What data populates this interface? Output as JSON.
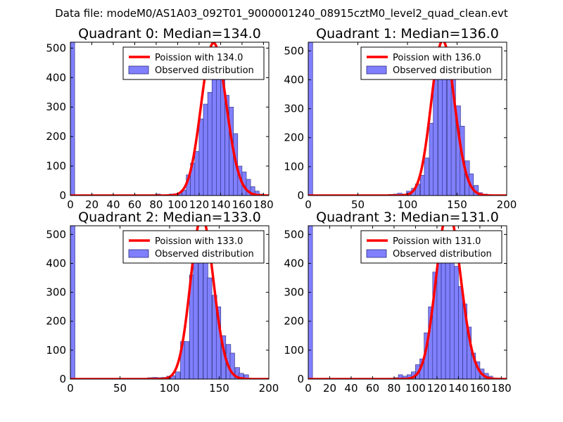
{
  "suptitle": "Data file: modeM0/AS1A03_092T01_9000001240_08915cztM0_level2_quad_clean.evt",
  "colors": {
    "bar_fill": "#8080ff",
    "bar_edge": "#2a2a7a",
    "line": "#ff0000",
    "axis": "#000000"
  },
  "chart_data": [
    {
      "type": "bar",
      "title": "Quadrant 0: Median=134.0",
      "xlim": [
        0,
        185
      ],
      "ylim": [
        0,
        520
      ],
      "xticks": [
        0,
        20,
        40,
        60,
        80,
        100,
        120,
        140,
        160,
        180
      ],
      "yticks": [
        0,
        100,
        200,
        300,
        400,
        500
      ],
      "bin_width": 4,
      "bins": [
        [
          0,
          520
        ],
        [
          76,
          3
        ],
        [
          80,
          5
        ],
        [
          84,
          2
        ],
        [
          88,
          3
        ],
        [
          92,
          5
        ],
        [
          96,
          6
        ],
        [
          100,
          10
        ],
        [
          104,
          18
        ],
        [
          108,
          70
        ],
        [
          112,
          110
        ],
        [
          116,
          150
        ],
        [
          120,
          260
        ],
        [
          124,
          310
        ],
        [
          128,
          350
        ],
        [
          132,
          450
        ],
        [
          136,
          470
        ],
        [
          140,
          400
        ],
        [
          144,
          340
        ],
        [
          148,
          300
        ],
        [
          152,
          210
        ],
        [
          156,
          100
        ],
        [
          160,
          80
        ],
        [
          164,
          55
        ],
        [
          168,
          30
        ],
        [
          172,
          15
        ],
        [
          176,
          5
        ]
      ],
      "poisson_mean": 134.0,
      "legend": [
        "Poission with 134.0",
        "Observed distribution"
      ]
    },
    {
      "type": "bar",
      "title": "Quadrant 1: Median=136.0",
      "xlim": [
        0,
        200
      ],
      "ylim": [
        0,
        530
      ],
      "xticks": [
        0,
        50,
        100,
        150,
        200
      ],
      "yticks": [
        0,
        100,
        200,
        300,
        400,
        500
      ],
      "bin_width": 4.5,
      "bins": [
        [
          0,
          530
        ],
        [
          77,
          3
        ],
        [
          81,
          4
        ],
        [
          86,
          5
        ],
        [
          90,
          8
        ],
        [
          95,
          5
        ],
        [
          99,
          15
        ],
        [
          104,
          25
        ],
        [
          108,
          40
        ],
        [
          113,
          70
        ],
        [
          117,
          130
        ],
        [
          122,
          250
        ],
        [
          126,
          410
        ],
        [
          131,
          430
        ],
        [
          135,
          460
        ],
        [
          140,
          420
        ],
        [
          144,
          410
        ],
        [
          149,
          310
        ],
        [
          153,
          240
        ],
        [
          158,
          120
        ],
        [
          162,
          75
        ],
        [
          167,
          35
        ],
        [
          171,
          10
        ],
        [
          176,
          5
        ]
      ],
      "poisson_mean": 136.0,
      "legend": [
        "Poission with 136.0",
        "Observed distribution"
      ]
    },
    {
      "type": "bar",
      "title": "Quadrant 2: Median=133.0",
      "xlim": [
        0,
        200
      ],
      "ylim": [
        0,
        530
      ],
      "xticks": [
        0,
        50,
        100,
        150,
        200
      ],
      "yticks": [
        0,
        100,
        200,
        300,
        400,
        500
      ],
      "bin_width": 4.6,
      "bins": [
        [
          0,
          530
        ],
        [
          74,
          3
        ],
        [
          78,
          5
        ],
        [
          83,
          6
        ],
        [
          88,
          5
        ],
        [
          92,
          6
        ],
        [
          97,
          10
        ],
        [
          101,
          12
        ],
        [
          106,
          25
        ],
        [
          111,
          130
        ],
        [
          115,
          130
        ],
        [
          120,
          360
        ],
        [
          124,
          510
        ],
        [
          129,
          510
        ],
        [
          134,
          490
        ],
        [
          138,
          350
        ],
        [
          143,
          290
        ],
        [
          147,
          250
        ],
        [
          152,
          150
        ],
        [
          157,
          120
        ],
        [
          161,
          90
        ],
        [
          166,
          40
        ],
        [
          170,
          20
        ],
        [
          175,
          15
        ]
      ],
      "poisson_mean": 133.0,
      "legend": [
        "Poission with 133.0",
        "Observed distribution"
      ]
    },
    {
      "type": "bar",
      "title": "Quadrant 3: Median=131.0",
      "xlim": [
        0,
        185
      ],
      "ylim": [
        0,
        530
      ],
      "xticks": [
        0,
        20,
        40,
        60,
        80,
        100,
        120,
        140,
        160,
        180
      ],
      "yticks": [
        0,
        100,
        200,
        300,
        400,
        500
      ],
      "bin_width": 4,
      "bins": [
        [
          0,
          530
        ],
        [
          76,
          3
        ],
        [
          80,
          5
        ],
        [
          84,
          15
        ],
        [
          88,
          10
        ],
        [
          92,
          15
        ],
        [
          96,
          25
        ],
        [
          100,
          50
        ],
        [
          104,
          70
        ],
        [
          108,
          160
        ],
        [
          112,
          250
        ],
        [
          116,
          370
        ],
        [
          120,
          430
        ],
        [
          124,
          440
        ],
        [
          128,
          500
        ],
        [
          132,
          470
        ],
        [
          136,
          390
        ],
        [
          140,
          320
        ],
        [
          144,
          260
        ],
        [
          148,
          180
        ],
        [
          152,
          90
        ],
        [
          156,
          60
        ],
        [
          160,
          35
        ],
        [
          164,
          20
        ],
        [
          168,
          10
        ]
      ],
      "poisson_mean": 131.0,
      "legend": [
        "Poission with 131.0",
        "Observed distribution"
      ]
    }
  ]
}
